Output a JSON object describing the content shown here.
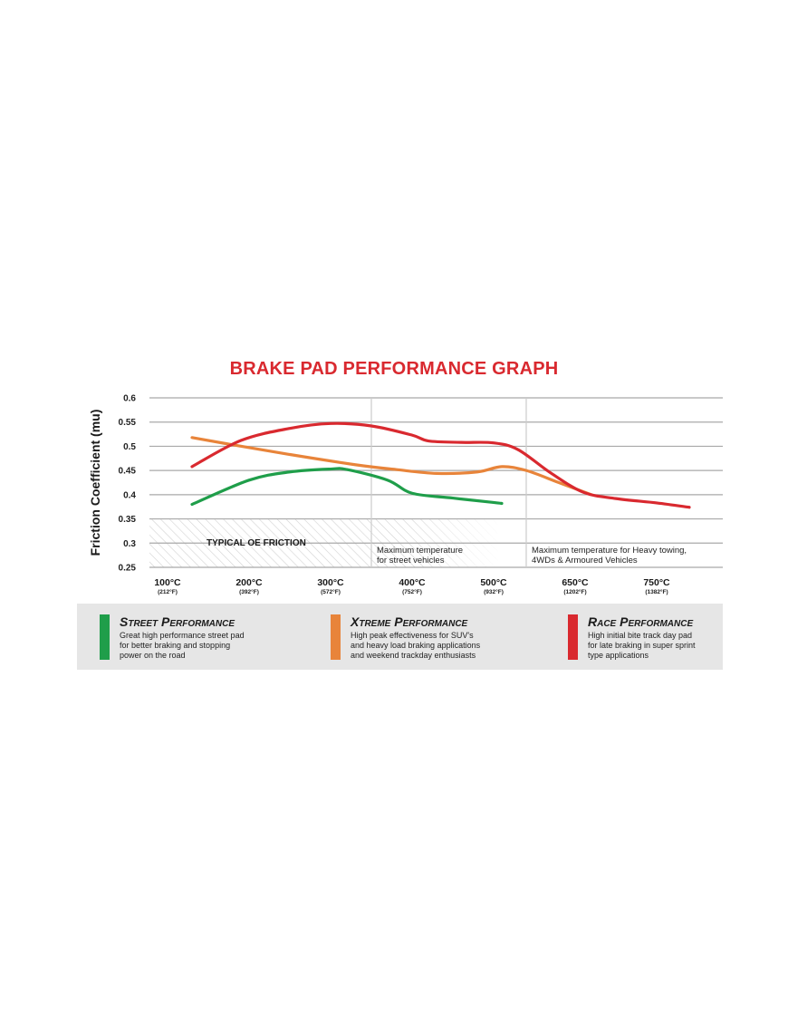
{
  "chart_data": {
    "type": "line",
    "title": "BRAKE PAD PERFORMANCE GRAPH",
    "ylabel": "Friction Coefficient (mu)",
    "ylim": [
      0.25,
      0.6
    ],
    "yticks": [
      "0.6",
      "0.55",
      "0.5",
      "0.45",
      "0.4",
      "0.35",
      "0.3",
      "0.25"
    ],
    "categories": [
      {
        "c": "100°C",
        "f": "(212°F)"
      },
      {
        "c": "200°C",
        "f": "(392°F)"
      },
      {
        "c": "300°C",
        "f": "(572°F)"
      },
      {
        "c": "400°C",
        "f": "(752°F)"
      },
      {
        "c": "500°C",
        "f": "(932°F)"
      },
      {
        "c": "650°C",
        "f": "(1202°F)"
      },
      {
        "c": "750°C",
        "f": "(1382°F)"
      }
    ],
    "grid": true,
    "series": [
      {
        "name": "Street Performance",
        "color": "#1f9e4a",
        "points": [
          [
            0.3,
            0.38
          ],
          [
            1,
            0.43
          ],
          [
            1.5,
            0.447
          ],
          [
            2,
            0.453
          ],
          [
            2.2,
            0.452
          ],
          [
            2.7,
            0.43
          ],
          [
            3,
            0.403
          ],
          [
            3.5,
            0.393
          ],
          [
            4,
            0.384
          ],
          [
            4.1,
            0.382
          ]
        ]
      },
      {
        "name": "Xtreme Performance",
        "color": "#e8843a",
        "points": [
          [
            0.3,
            0.518
          ],
          [
            0.8,
            0.503
          ],
          [
            1.5,
            0.483
          ],
          [
            2.3,
            0.462
          ],
          [
            2.8,
            0.452
          ],
          [
            3.3,
            0.444
          ],
          [
            3.8,
            0.447
          ],
          [
            4.1,
            0.458
          ],
          [
            4.4,
            0.45
          ],
          [
            4.8,
            0.425
          ],
          [
            5.2,
            0.4
          ]
        ]
      },
      {
        "name": "Race Performance",
        "color": "#d9292f",
        "points": [
          [
            0.3,
            0.458
          ],
          [
            0.9,
            0.512
          ],
          [
            1.5,
            0.537
          ],
          [
            2,
            0.547
          ],
          [
            2.5,
            0.542
          ],
          [
            3,
            0.523
          ],
          [
            3.2,
            0.511
          ],
          [
            3.6,
            0.508
          ],
          [
            4,
            0.507
          ],
          [
            4.3,
            0.493
          ],
          [
            4.7,
            0.445
          ],
          [
            5.1,
            0.405
          ],
          [
            5.5,
            0.392
          ],
          [
            6,
            0.383
          ],
          [
            6.4,
            0.374
          ]
        ]
      }
    ],
    "annotations": [
      {
        "name": "typical",
        "text": "TYPICAL OE FRICTION"
      },
      {
        "name": "street-max",
        "lines": [
          "Maximum temperature",
          "for street vehicles"
        ]
      },
      {
        "name": "heavy-max",
        "lines": [
          "Maximum temperature for Heavy towing,",
          "4WDs & Armoured Vehicles"
        ]
      }
    ]
  },
  "legend": [
    {
      "name": "Street Performance",
      "color": "#1f9e4a",
      "desc": [
        "Great high performance street pad",
        "for better braking and stopping",
        "power on the road"
      ]
    },
    {
      "name": "Xtreme Performance",
      "color": "#e8843a",
      "desc": [
        "High peak effectiveness for SUV's",
        "and heavy load braking applications",
        "and weekend trackday enthusiasts"
      ]
    },
    {
      "name": "Race Performance",
      "color": "#d9292f",
      "desc": [
        "High initial bite track day pad",
        "for late braking in super sprint",
        "type applications"
      ]
    }
  ]
}
